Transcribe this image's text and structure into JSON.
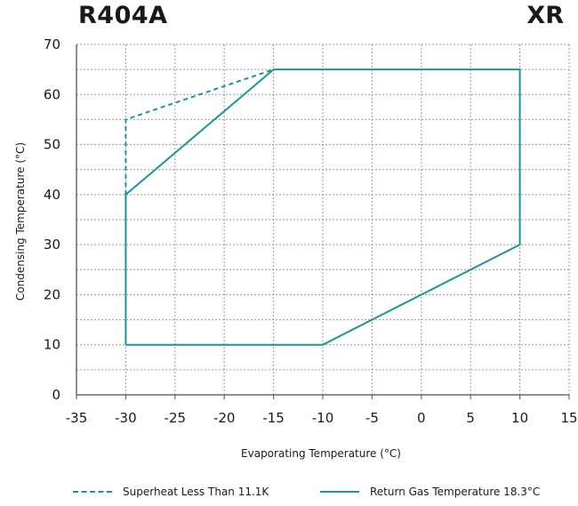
{
  "header": {
    "left_title": "R404A",
    "right_title": "XR"
  },
  "chart_data": {
    "type": "line",
    "title": "R404A",
    "xlabel": "Evaporating Temperature (°C)",
    "ylabel": "Condensing Temperature (°C)",
    "xlim": [
      -35,
      15
    ],
    "ylim": [
      0,
      70
    ],
    "x_ticks": [
      -35,
      -30,
      -25,
      -20,
      -15,
      -10,
      -5,
      0,
      5,
      10,
      15
    ],
    "y_ticks": [
      0,
      10,
      20,
      30,
      40,
      50,
      60,
      70
    ],
    "x_tick_labels": [
      "-35",
      "-30",
      "-25",
      "-20",
      "-15",
      "-10",
      "-5",
      "0",
      "5",
      "10",
      "15"
    ],
    "y_tick_labels": [
      "0",
      "10",
      "20",
      "30",
      "40",
      "50",
      "60",
      "70"
    ],
    "grid": true,
    "legend_position": "bottom",
    "series": [
      {
        "name": "Superheat Less Than 11.1K",
        "style": "dashed",
        "color": "#1b9696",
        "points": [
          [
            -30,
            40
          ],
          [
            -30,
            55
          ],
          [
            -15,
            65
          ]
        ]
      },
      {
        "name": "Return Gas Temperature 18.3°C",
        "style": "solid",
        "color": "#1b9696",
        "points": [
          [
            -30,
            10
          ],
          [
            -30,
            40
          ],
          [
            -15,
            65
          ],
          [
            10,
            65
          ],
          [
            10,
            30
          ],
          [
            -10,
            10
          ],
          [
            -30,
            10
          ]
        ]
      }
    ]
  }
}
